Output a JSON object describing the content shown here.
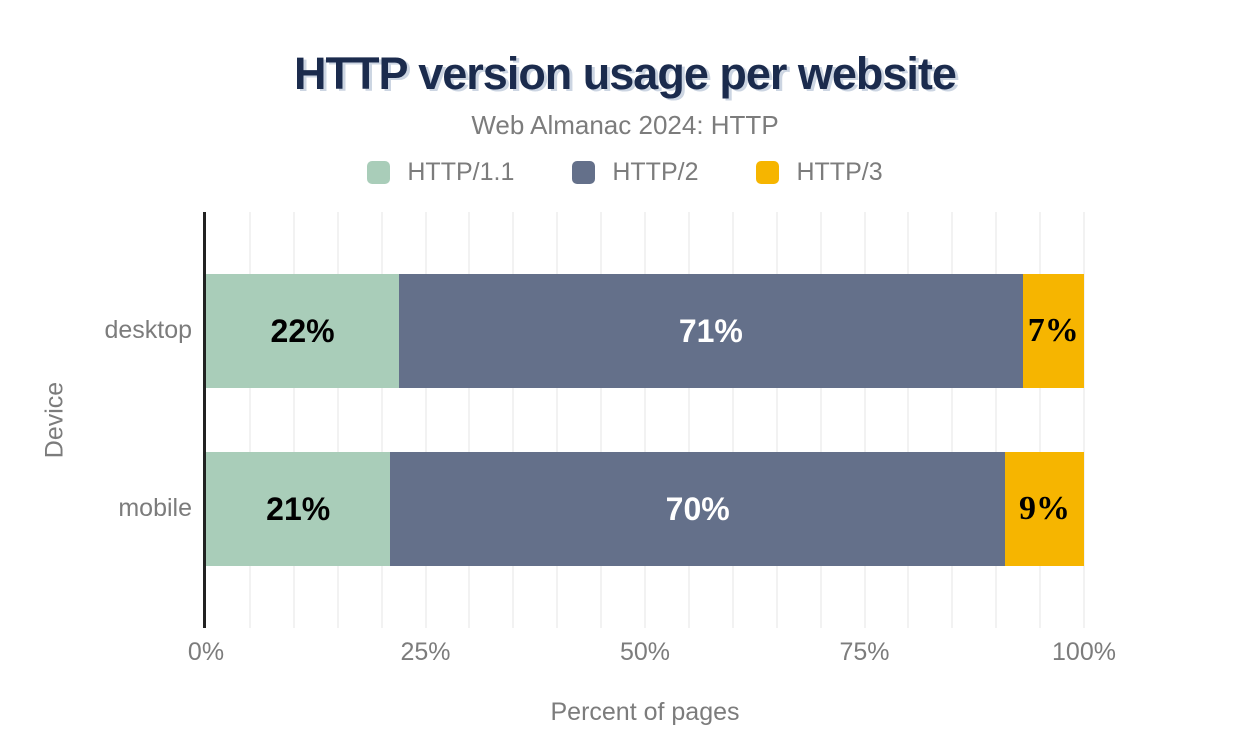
{
  "header": {
    "title": "HTTP version usage per website",
    "subtitle": "Web Almanac 2024: HTTP"
  },
  "chart_data": {
    "type": "bar",
    "orientation": "horizontal",
    "stacked": true,
    "title": "HTTP version usage per website",
    "subtitle": "Web Almanac 2024: HTTP",
    "xlabel": "Percent of pages",
    "ylabel": "Device",
    "categories": [
      "desktop",
      "mobile"
    ],
    "series": [
      {
        "name": "HTTP/1.1",
        "color": "#A9CDB9",
        "label_color": "#000000",
        "values": [
          22,
          21
        ]
      },
      {
        "name": "HTTP/2",
        "color": "#64708A",
        "label_color": "#FFFFFF",
        "values": [
          71,
          70
        ]
      },
      {
        "name": "HTTP/3",
        "color": "#F6B500",
        "label_color": "#000000",
        "values": [
          7,
          9
        ]
      }
    ],
    "data_labels": {
      "desktop": [
        "22%",
        "71%",
        "7%"
      ],
      "mobile": [
        "21%",
        "70%",
        "9%"
      ]
    },
    "value_suffix": "%",
    "xlim": [
      0,
      100
    ],
    "x_ticks": [
      "0%",
      "25%",
      "50%",
      "75%",
      "100%"
    ],
    "grid": "vertical minor gridlines every 5%",
    "legend_position": "top center",
    "colors": {
      "title": "#1b2b4d",
      "axis_text": "#7c7c7c",
      "axis_line": "#222222",
      "gridline": "#f2f2f2"
    }
  }
}
